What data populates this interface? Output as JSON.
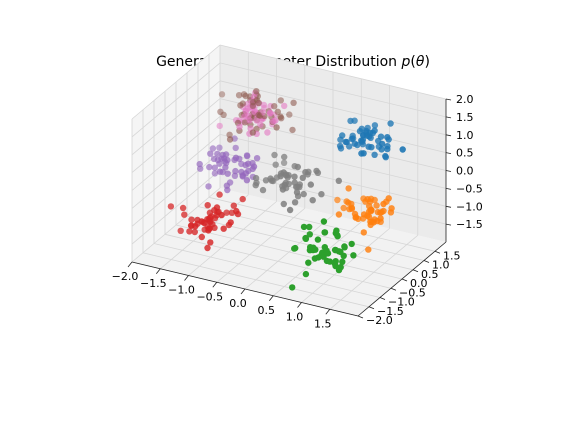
{
  "chart_data": {
    "type": "scatter3d",
    "title": "Generative Parameter Distribution p(θ)",
    "title_parts": [
      "Generative Parameter Distribution ",
      "p",
      "(",
      "θ",
      ")"
    ],
    "xlabel": "",
    "ylabel": "",
    "zlabel": "",
    "xlim": [
      -2.0,
      2.0
    ],
    "ylim": [
      -2.0,
      2.0
    ],
    "zlim": [
      -2.0,
      2.0
    ],
    "x_ticks": [
      "−2.0",
      "−1.5",
      "−1.0",
      "−0.5",
      "0.0",
      "0.5",
      "1.0",
      "1.5"
    ],
    "y_ticks": [
      "−2.0",
      "−1.5",
      "−1.0",
      "−0.5",
      "0.0",
      "0.5",
      "1.0",
      "1.5"
    ],
    "z_ticks": [
      "−1.5",
      "−1.0",
      "−0.5",
      "0.0",
      "0.5",
      "1.0",
      "1.5",
      "2.0"
    ],
    "x_tick_values": [
      -2.0,
      -1.5,
      -1.0,
      -0.5,
      0.0,
      0.5,
      1.0,
      1.5
    ],
    "y_tick_values": [
      -2.0,
      -1.5,
      -1.0,
      -0.5,
      0.0,
      0.5,
      1.0,
      1.5
    ],
    "z_tick_values": [
      -1.5,
      -1.0,
      -0.5,
      0.0,
      0.5,
      1.0,
      1.5,
      2.0
    ],
    "grid": true,
    "legend": "none",
    "points_per_cluster": 50,
    "cluster_spread": 0.25,
    "series": [
      {
        "color": "#1f77b4",
        "center": [
          1,
          1,
          1
        ]
      },
      {
        "color": "#ff7f0e",
        "center": [
          1,
          1,
          -1
        ]
      },
      {
        "color": "#2ca02c",
        "center": [
          1,
          -1,
          -1
        ]
      },
      {
        "color": "#d62728",
        "center": [
          -1,
          -1,
          -1
        ]
      },
      {
        "color": "#9467bd",
        "center": [
          -1,
          0,
          0
        ]
      },
      {
        "color": "#8c564b",
        "center": [
          -1,
          1,
          1
        ]
      },
      {
        "color": "#e377c2",
        "center": [
          -1,
          1,
          1
        ]
      },
      {
        "color": "#7f7f7f",
        "center": [
          0,
          0,
          0
        ]
      }
    ]
  }
}
